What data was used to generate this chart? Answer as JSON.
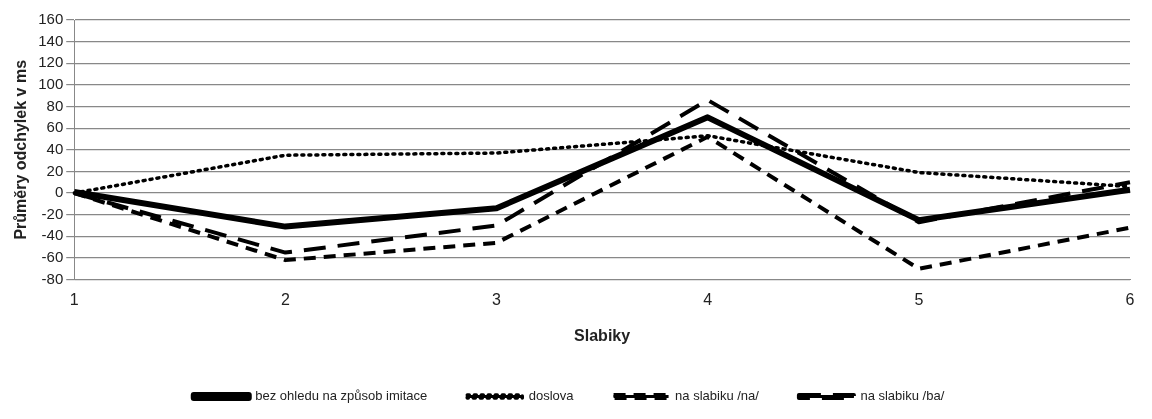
{
  "chart_data": {
    "type": "line",
    "xlabel": "Slabiky",
    "ylabel": "Průměry odchylek v ms",
    "categories": [
      "1",
      "2",
      "3",
      "4",
      "5",
      "6"
    ],
    "series": [
      {
        "name": "bez ohledu na způsob imitace",
        "color": "#000000",
        "line_style": "solid",
        "values": [
          1,
          -31,
          -14,
          70,
          -25,
          3
        ]
      },
      {
        "name": "doslova",
        "color": "#000000",
        "line_style": "dotted",
        "values": [
          0,
          35,
          37,
          53,
          19,
          6
        ]
      },
      {
        "name": "na slabiku /na/",
        "color": "#000000",
        "line_style": "dashed",
        "values": [
          0,
          -62,
          -46,
          52,
          -70,
          -32
        ]
      },
      {
        "name": "na slabiku /ba/",
        "color": "#000000",
        "line_style": "dashed",
        "values": [
          0,
          -55,
          -30,
          86,
          -27,
          10
        ]
      }
    ],
    "ylim": [
      -80,
      160
    ],
    "yticks": [
      -80,
      -60,
      -40,
      -20,
      0,
      20,
      40,
      60,
      80,
      100,
      120,
      140,
      160
    ],
    "grid": "y",
    "legend": "bottom",
    "marker": "none"
  }
}
